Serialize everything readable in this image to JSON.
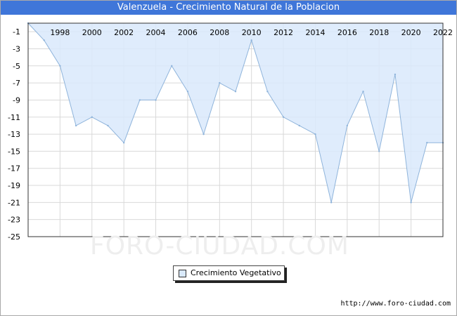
{
  "title": "Valenzuela - Crecimiento Natural de la Poblacion",
  "watermark": "FORO-CIUDAD.COM",
  "source": "http://www.foro-ciudad.com",
  "legend": {
    "label": "Crecimiento Vegetativo",
    "position": "bottom-center"
  },
  "colors": {
    "title_bar": "#3f76d9",
    "area_fill": "#d9e9fb",
    "line": "#8fb4db",
    "grid": "#d9d9d9",
    "plot_border": "#333333"
  },
  "chart_data": {
    "type": "area",
    "title": "Valenzuela - Crecimiento Natural de la Poblacion",
    "xlabel": "",
    "ylabel": "",
    "x": [
      1996,
      1997,
      1998,
      1999,
      2000,
      2001,
      2002,
      2003,
      2004,
      2005,
      2006,
      2007,
      2008,
      2009,
      2010,
      2011,
      2012,
      2013,
      2014,
      2015,
      2016,
      2017,
      2018,
      2019,
      2020,
      2021,
      2022
    ],
    "series": [
      {
        "name": "Crecimiento Vegetativo",
        "values": [
          0,
          -2,
          -5,
          -12,
          -11,
          -12,
          -14,
          -9,
          -9,
          -5,
          -8,
          -13,
          -7,
          -8,
          -2,
          -8,
          -11,
          -12,
          -13,
          -21,
          -12,
          -8,
          -15,
          -6,
          -21,
          -14,
          -14
        ]
      }
    ],
    "xlim": [
      1996,
      2022
    ],
    "ylim": [
      -25,
      0
    ],
    "x_ticks": [
      "1998",
      "2000",
      "2002",
      "2004",
      "2006",
      "2008",
      "2010",
      "2012",
      "2014",
      "2016",
      "2018",
      "2020",
      "2022"
    ],
    "y_ticks": [
      "-1",
      "-3",
      "-5",
      "-7",
      "-9",
      "-11",
      "-13",
      "-15",
      "-17",
      "-19",
      "-21",
      "-23",
      "-25"
    ],
    "grid": true,
    "x_axis_position": "top"
  }
}
